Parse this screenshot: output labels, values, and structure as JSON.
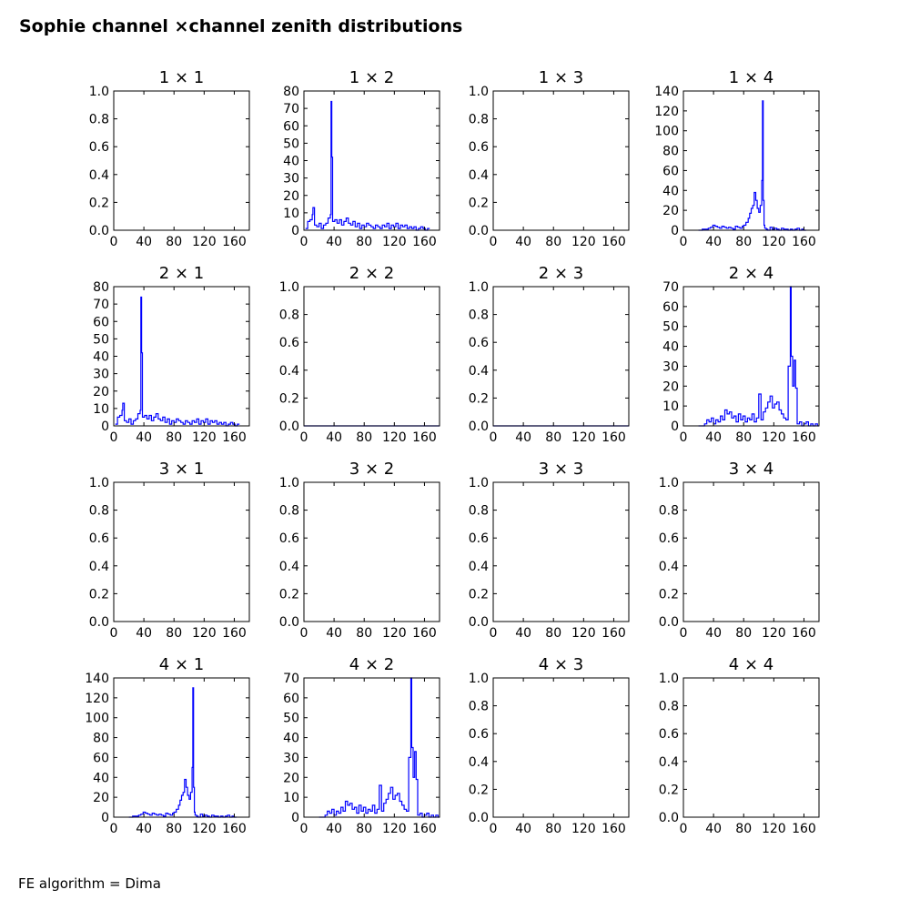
{
  "figure": {
    "title": "Sophie channel ×channel zenith distributions",
    "footer": "FE algorithm = Dima"
  },
  "colors": {
    "series": "#0000ff",
    "axes": "#000000",
    "background": "#ffffff"
  },
  "chart_data": [
    {
      "type": "line",
      "title": "1  × 1",
      "xlim": [
        0,
        180
      ],
      "ylim": [
        0,
        1
      ],
      "xticks": [
        0,
        40,
        80,
        120,
        160
      ],
      "yticks": [
        0.0,
        0.2,
        0.4,
        0.6,
        0.8,
        1.0
      ],
      "series": []
    },
    {
      "type": "line",
      "title": "1  × 2",
      "xlim": [
        0,
        180
      ],
      "ylim": [
        0,
        80
      ],
      "xticks": [
        0,
        40,
        80,
        120,
        160
      ],
      "yticks": [
        0,
        10,
        20,
        30,
        40,
        50,
        60,
        70,
        80
      ],
      "series": [
        {
          "x": [
            2,
            5,
            8,
            11,
            12,
            14,
            17,
            20,
            23,
            26,
            29,
            32,
            35,
            36,
            37,
            38,
            41,
            44,
            47,
            50,
            53,
            56,
            59,
            62,
            65,
            68,
            71,
            74,
            77,
            80,
            83,
            86,
            89,
            92,
            95,
            98,
            101,
            104,
            107,
            110,
            113,
            116,
            119,
            122,
            125,
            128,
            131,
            134,
            137,
            140,
            143,
            146,
            149,
            152,
            155,
            158,
            161,
            164
          ],
          "y": [
            1,
            5,
            6,
            9,
            13,
            3,
            2,
            4,
            1,
            3,
            4,
            7,
            9,
            74,
            42,
            5,
            6,
            4,
            6,
            3,
            5,
            7,
            4,
            3,
            5,
            2,
            4,
            1,
            3,
            2,
            4,
            3,
            2,
            1,
            3,
            2,
            1,
            3,
            2,
            4,
            1,
            3,
            2,
            4,
            1,
            3,
            2,
            3,
            1,
            2,
            1,
            2,
            0,
            1,
            2,
            1,
            0,
            1
          ]
        }
      ]
    },
    {
      "type": "line",
      "title": "1  × 3",
      "xlim": [
        0,
        180
      ],
      "ylim": [
        0,
        1
      ],
      "xticks": [
        0,
        40,
        80,
        120,
        160
      ],
      "yticks": [
        0.0,
        0.2,
        0.4,
        0.6,
        0.8,
        1.0
      ],
      "series": []
    },
    {
      "type": "line",
      "title": "1  × 4",
      "xlim": [
        0,
        180
      ],
      "ylim": [
        0,
        140
      ],
      "xticks": [
        0,
        40,
        80,
        120,
        160
      ],
      "yticks": [
        0,
        20,
        40,
        60,
        80,
        100,
        120,
        140
      ],
      "series": [
        {
          "x": [
            20,
            25,
            30,
            33,
            36,
            39,
            42,
            45,
            48,
            51,
            54,
            57,
            60,
            63,
            66,
            69,
            72,
            75,
            78,
            80,
            83,
            86,
            88,
            90,
            92,
            94,
            96,
            98,
            100,
            102,
            104,
            105,
            106,
            107,
            108,
            110,
            112,
            115,
            118,
            121,
            124,
            127,
            130,
            133,
            136,
            139,
            142,
            145,
            148,
            151,
            154,
            157,
            160
          ],
          "y": [
            0,
            1,
            1,
            2,
            3,
            5,
            4,
            3,
            2,
            4,
            3,
            2,
            3,
            2,
            1,
            4,
            3,
            2,
            4,
            5,
            8,
            12,
            17,
            22,
            25,
            38,
            30,
            22,
            18,
            25,
            50,
            130,
            30,
            5,
            2,
            1,
            0,
            3,
            1,
            2,
            1,
            0,
            2,
            1,
            1,
            0,
            1,
            0,
            1,
            2,
            0,
            1,
            0
          ]
        }
      ]
    },
    {
      "type": "line",
      "title": "2  × 1",
      "xlim": [
        0,
        180
      ],
      "ylim": [
        0,
        80
      ],
      "xticks": [
        0,
        40,
        80,
        120,
        160
      ],
      "yticks": [
        0,
        10,
        20,
        30,
        40,
        50,
        60,
        70,
        80
      ],
      "series": [
        {
          "x": [
            2,
            5,
            8,
            11,
            12,
            14,
            17,
            20,
            23,
            26,
            29,
            32,
            35,
            36,
            37,
            38,
            41,
            44,
            47,
            50,
            53,
            56,
            59,
            62,
            65,
            68,
            71,
            74,
            77,
            80,
            83,
            86,
            89,
            92,
            95,
            98,
            101,
            104,
            107,
            110,
            113,
            116,
            119,
            122,
            125,
            128,
            131,
            134,
            137,
            140,
            143,
            146,
            149,
            152,
            155,
            158,
            161,
            164
          ],
          "y": [
            1,
            5,
            6,
            9,
            13,
            3,
            2,
            4,
            1,
            3,
            4,
            7,
            9,
            74,
            42,
            5,
            6,
            4,
            6,
            3,
            5,
            7,
            4,
            3,
            5,
            2,
            4,
            1,
            3,
            2,
            4,
            3,
            2,
            1,
            3,
            2,
            1,
            3,
            2,
            4,
            1,
            3,
            2,
            4,
            1,
            3,
            2,
            3,
            1,
            2,
            1,
            2,
            0,
            1,
            2,
            1,
            0,
            1
          ]
        }
      ]
    },
    {
      "type": "line",
      "title": "2  × 2",
      "xlim": [
        0,
        180
      ],
      "ylim": [
        0,
        1
      ],
      "xticks": [
        0,
        40,
        80,
        120,
        160
      ],
      "yticks": [
        0.0,
        0.2,
        0.4,
        0.6,
        0.8,
        1.0
      ],
      "series": [
        {
          "x": [
            0,
            180
          ],
          "y": [
            0,
            0
          ]
        }
      ]
    },
    {
      "type": "line",
      "title": "2  × 3",
      "xlim": [
        0,
        180
      ],
      "ylim": [
        0,
        1
      ],
      "xticks": [
        0,
        40,
        80,
        120,
        160
      ],
      "yticks": [
        0.0,
        0.2,
        0.4,
        0.6,
        0.8,
        1.0
      ],
      "series": [
        {
          "x": [
            0,
            180
          ],
          "y": [
            0,
            0
          ]
        }
      ]
    },
    {
      "type": "line",
      "title": "2  × 4",
      "xlim": [
        0,
        180
      ],
      "ylim": [
        0,
        70
      ],
      "xticks": [
        0,
        40,
        80,
        120,
        160
      ],
      "yticks": [
        0,
        10,
        20,
        30,
        40,
        50,
        60,
        70
      ],
      "series": [
        {
          "x": [
            20,
            25,
            28,
            31,
            34,
            37,
            40,
            43,
            46,
            49,
            52,
            55,
            58,
            61,
            64,
            67,
            70,
            73,
            76,
            79,
            82,
            85,
            88,
            91,
            94,
            97,
            100,
            103,
            106,
            109,
            112,
            115,
            118,
            121,
            124,
            127,
            130,
            133,
            136,
            139,
            142,
            143,
            145,
            147,
            149,
            151,
            154,
            157,
            160,
            163,
            166,
            169,
            172,
            175,
            178
          ],
          "y": [
            0,
            0,
            1,
            3,
            2,
            4,
            1,
            3,
            2,
            5,
            3,
            8,
            6,
            7,
            4,
            5,
            2,
            6,
            3,
            5,
            2,
            4,
            3,
            6,
            2,
            4,
            16,
            3,
            7,
            9,
            12,
            15,
            9,
            11,
            12,
            8,
            6,
            4,
            3,
            30,
            70,
            35,
            20,
            33,
            19,
            1,
            2,
            0,
            1,
            2,
            0,
            1,
            0,
            1,
            0
          ]
        }
      ]
    },
    {
      "type": "line",
      "title": "3  × 1",
      "xlim": [
        0,
        180
      ],
      "ylim": [
        0,
        1
      ],
      "xticks": [
        0,
        40,
        80,
        120,
        160
      ],
      "yticks": [
        0.0,
        0.2,
        0.4,
        0.6,
        0.8,
        1.0
      ],
      "series": []
    },
    {
      "type": "line",
      "title": "3  × 2",
      "xlim": [
        0,
        180
      ],
      "ylim": [
        0,
        1
      ],
      "xticks": [
        0,
        40,
        80,
        120,
        160
      ],
      "yticks": [
        0.0,
        0.2,
        0.4,
        0.6,
        0.8,
        1.0
      ],
      "series": []
    },
    {
      "type": "line",
      "title": "3  × 3",
      "xlim": [
        0,
        180
      ],
      "ylim": [
        0,
        1
      ],
      "xticks": [
        0,
        40,
        80,
        120,
        160
      ],
      "yticks": [
        0.0,
        0.2,
        0.4,
        0.6,
        0.8,
        1.0
      ],
      "series": []
    },
    {
      "type": "line",
      "title": "3  × 4",
      "xlim": [
        0,
        180
      ],
      "ylim": [
        0,
        1
      ],
      "xticks": [
        0,
        40,
        80,
        120,
        160
      ],
      "yticks": [
        0.0,
        0.2,
        0.4,
        0.6,
        0.8,
        1.0
      ],
      "series": []
    },
    {
      "type": "line",
      "title": "4  × 1",
      "xlim": [
        0,
        180
      ],
      "ylim": [
        0,
        140
      ],
      "xticks": [
        0,
        40,
        80,
        120,
        160
      ],
      "yticks": [
        0,
        20,
        40,
        60,
        80,
        100,
        120,
        140
      ],
      "series": [
        {
          "x": [
            20,
            25,
            30,
            33,
            36,
            39,
            42,
            45,
            48,
            51,
            54,
            57,
            60,
            63,
            66,
            69,
            72,
            75,
            78,
            80,
            83,
            86,
            88,
            90,
            92,
            94,
            96,
            98,
            100,
            102,
            104,
            105,
            106,
            107,
            108,
            110,
            112,
            115,
            118,
            121,
            124,
            127,
            130,
            133,
            136,
            139,
            142,
            145,
            148,
            151,
            154,
            157,
            160
          ],
          "y": [
            0,
            1,
            1,
            2,
            3,
            5,
            4,
            3,
            2,
            4,
            3,
            2,
            3,
            2,
            1,
            4,
            3,
            2,
            4,
            5,
            8,
            12,
            17,
            22,
            25,
            38,
            30,
            22,
            18,
            25,
            50,
            130,
            30,
            5,
            2,
            1,
            0,
            3,
            1,
            2,
            1,
            0,
            2,
            1,
            1,
            0,
            1,
            0,
            1,
            2,
            0,
            1,
            0
          ]
        }
      ]
    },
    {
      "type": "line",
      "title": "4  × 2",
      "xlim": [
        0,
        180
      ],
      "ylim": [
        0,
        70
      ],
      "xticks": [
        0,
        40,
        80,
        120,
        160
      ],
      "yticks": [
        0,
        10,
        20,
        30,
        40,
        50,
        60,
        70
      ],
      "series": [
        {
          "x": [
            20,
            25,
            28,
            31,
            34,
            37,
            40,
            43,
            46,
            49,
            52,
            55,
            58,
            61,
            64,
            67,
            70,
            73,
            76,
            79,
            82,
            85,
            88,
            91,
            94,
            97,
            100,
            103,
            106,
            109,
            112,
            115,
            118,
            121,
            124,
            127,
            130,
            133,
            136,
            139,
            142,
            143,
            145,
            147,
            149,
            151,
            154,
            157,
            160,
            163,
            166,
            169,
            172,
            175,
            178
          ],
          "y": [
            0,
            0,
            1,
            3,
            2,
            4,
            1,
            3,
            2,
            5,
            3,
            8,
            6,
            7,
            4,
            5,
            2,
            6,
            3,
            5,
            2,
            4,
            3,
            6,
            2,
            4,
            16,
            3,
            7,
            9,
            12,
            15,
            9,
            11,
            12,
            8,
            6,
            4,
            3,
            30,
            70,
            35,
            20,
            33,
            19,
            1,
            2,
            0,
            1,
            2,
            0,
            1,
            0,
            1,
            0
          ]
        }
      ]
    },
    {
      "type": "line",
      "title": "4  × 3",
      "xlim": [
        0,
        180
      ],
      "ylim": [
        0,
        1
      ],
      "xticks": [
        0,
        40,
        80,
        120,
        160
      ],
      "yticks": [
        0.0,
        0.2,
        0.4,
        0.6,
        0.8,
        1.0
      ],
      "series": []
    },
    {
      "type": "line",
      "title": "4  × 4",
      "xlim": [
        0,
        180
      ],
      "ylim": [
        0,
        1
      ],
      "xticks": [
        0,
        40,
        80,
        120,
        160
      ],
      "yticks": [
        0.0,
        0.2,
        0.4,
        0.6,
        0.8,
        1.0
      ],
      "series": []
    }
  ]
}
